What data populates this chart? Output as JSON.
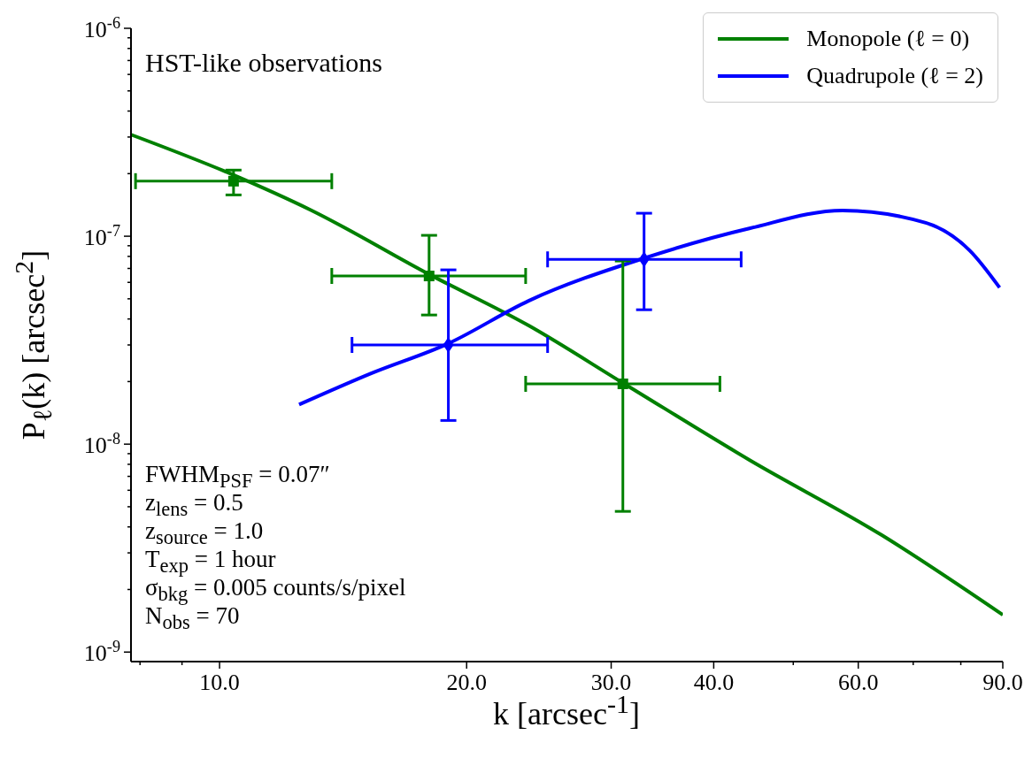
{
  "chart_data": {
    "type": "line",
    "xlabel": "k [arcsec$^{-1}$]",
    "ylabel": "P$_{ℓ}$(k) [arcsec$^{2}$]",
    "log": "xy",
    "xlim": [
      7.8,
      90
    ],
    "ylim": [
      9e-10,
      1e-06
    ],
    "xticks": [
      {
        "value": 8,
        "label": null
      },
      {
        "value": 9,
        "label": null
      },
      {
        "value": 10,
        "label": "10.0"
      },
      {
        "value": 20,
        "label": "20.0"
      },
      {
        "value": 30,
        "label": "30.0"
      },
      {
        "value": 40,
        "label": "40.0"
      },
      {
        "value": 50,
        "label": null
      },
      {
        "value": 60,
        "label": "60.0"
      },
      {
        "value": 70,
        "label": null
      },
      {
        "value": 80,
        "label": null
      },
      {
        "value": 90,
        "label": "90.0"
      }
    ],
    "yticks": [
      {
        "value": 1e-09,
        "label": "10$^{-9}$"
      },
      {
        "value": 2e-09,
        "label": null
      },
      {
        "value": 3e-09,
        "label": null
      },
      {
        "value": 4e-09,
        "label": null
      },
      {
        "value": 5e-09,
        "label": null
      },
      {
        "value": 6e-09,
        "label": null
      },
      {
        "value": 7e-09,
        "label": null
      },
      {
        "value": 8e-09,
        "label": null
      },
      {
        "value": 9e-09,
        "label": null
      },
      {
        "value": 1e-08,
        "label": "10$^{-8}$"
      },
      {
        "value": 2e-08,
        "label": null
      },
      {
        "value": 3e-08,
        "label": null
      },
      {
        "value": 4e-08,
        "label": null
      },
      {
        "value": 5e-08,
        "label": null
      },
      {
        "value": 6e-08,
        "label": null
      },
      {
        "value": 7e-08,
        "label": null
      },
      {
        "value": 8e-08,
        "label": null
      },
      {
        "value": 9e-08,
        "label": null
      },
      {
        "value": 1e-07,
        "label": "10$^{-7}$"
      },
      {
        "value": 2e-07,
        "label": null
      },
      {
        "value": 3e-07,
        "label": null
      },
      {
        "value": 4e-07,
        "label": null
      },
      {
        "value": 5e-07,
        "label": null
      },
      {
        "value": 6e-07,
        "label": null
      },
      {
        "value": 7e-07,
        "label": null
      },
      {
        "value": 8e-07,
        "label": null
      },
      {
        "value": 9e-07,
        "label": null
      },
      {
        "value": 1e-06,
        "label": "10$^{-6}$"
      }
    ],
    "grid": false,
    "legend": "top right",
    "series": [
      {
        "name": "Monopole (ℓ = 0)",
        "color": "#008000",
        "x": [
          7.8,
          10.4,
          12.9,
          18.0,
          23.8,
          31.0,
          44.2,
          64.1,
          90
        ],
        "values": [
          3.08e-07,
          1.97e-07,
          1.34e-07,
          6.56e-08,
          3.72e-08,
          1.97e-08,
          8.4e-09,
          3.65e-09,
          1.51e-09
        ]
      },
      {
        "name": "Quadrupole (ℓ = 2)",
        "color": "#0000ff",
        "x": [
          12.5,
          15.3,
          19.0,
          23.8,
          32.9,
          44.2,
          57.4,
          72.5,
          82.0,
          89.2
        ],
        "values": [
          1.55e-08,
          2.19e-08,
          3.05e-08,
          4.89e-08,
          7.84e-08,
          1.09e-07,
          1.33e-07,
          1.16e-07,
          8.55e-08,
          5.66e-08
        ]
      },
      {
        "type": "scatter",
        "marker": "square",
        "color": "#008000",
        "x": [
          10.4,
          18.0,
          31.0
        ],
        "values": [
          1.84e-07,
          6.44e-08,
          1.95e-08
        ],
        "errors": [
          [
            1.58e-07,
            2.08e-07
          ],
          [
            4.18e-08,
            1.01e-07
          ],
          [
            4.75e-09,
            7.6e-08
          ]
        ],
        "xerrors": [
          [
            7.9,
            13.7
          ],
          [
            13.7,
            23.6
          ],
          [
            23.6,
            40.7
          ]
        ]
      },
      {
        "type": "scatter",
        "marker": "diamond",
        "color": "#0000ff",
        "x": [
          19.0,
          32.9
        ],
        "values": [
          3e-08,
          7.74e-08
        ],
        "errors": [
          [
            1.3e-08,
            6.89e-08
          ],
          [
            4.43e-08,
            1.29e-07
          ]
        ],
        "xerrors": [
          [
            14.5,
            25.1
          ],
          [
            25.1,
            43.2
          ]
        ]
      }
    ],
    "annotations": [
      "HST-like observations",
      "FWHM$_{PSF}$ = 0.07″",
      "z$_{lens}$ = 0.5",
      "z$_{source}$ = 1.0",
      "T$_{exp}$ = 1 hour",
      "σ$_{bkg}$ = 0.005 counts/s/pixel",
      "N$_{obs}$ = 70"
    ]
  }
}
